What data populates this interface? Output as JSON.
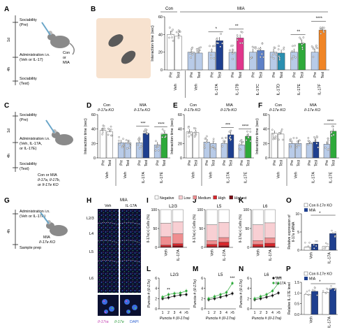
{
  "panel_letters": {
    "A": "A",
    "B": "B",
    "C": "C",
    "D": "D",
    "E": "E",
    "F": "F",
    "G": "G",
    "H": "H",
    "I": "I",
    "J": "J",
    "K": "K",
    "L": "L",
    "M": "M",
    "N": "N",
    "O": "O",
    "P": "P"
  },
  "common": {
    "pre": "Pre",
    "test": "Test",
    "veh": "Veh",
    "il17a": "IL-17A",
    "il17b": "IL-17B",
    "il17c": "IL-17C",
    "il17d": "IL-17D",
    "il17e": "IL-17E",
    "il17f": "IL-17F",
    "interaction_time": "Interaction time (sec)",
    "sig1": "*",
    "sig2": "**",
    "sig3": "***",
    "sig4": "****",
    "timeline_1d": "1d",
    "timeline_4h": "4h"
  },
  "panel_a": {
    "sociability_pre": "Sociability",
    "sociability_pre_sub": "(Pre)",
    "admin": "Administration i.n.",
    "admin_sub": "(Veh or IL-17)",
    "sociability_test": "Sociability",
    "sociability_test_sub": "(Test)",
    "mouse_label_1": "Con",
    "mouse_label_2": "or",
    "mouse_label_3": "MIA"
  },
  "panel_b": {
    "con": "Con",
    "mia": "MIA",
    "y_ticks": [
      "0",
      "20",
      "40",
      "60"
    ],
    "categories": [
      "Veh",
      "Veh",
      "IL-17A",
      "IL-17B",
      "IL-17C",
      "IL-17D",
      "IL-17E",
      "IL-17F"
    ]
  },
  "panel_c": {
    "sociability_pre": "Sociability",
    "sociability_pre_sub": "(Pre)",
    "admin": "Administration i.n.",
    "admin_sub1": "(Veh, IL-17A,",
    "admin_sub2": "or IL-17E)",
    "sociability_test": "Sociability",
    "sociability_test_sub": "(Test)",
    "mouse_label_1": "Con or MIA",
    "mouse_label_2": "Il-17a, Il-17b,",
    "mouse_label_3": "or Il-17e KO"
  },
  "panel_d": {
    "con": "Con",
    "mia": "MIA",
    "ko_con": "Il-17a KO",
    "ko_mia": "Il-17a KO",
    "y_ticks": [
      "0",
      "20",
      "40",
      "60"
    ]
  },
  "panel_e": {
    "con": "Con",
    "mia": "MIA",
    "ko_con": "Il-17b KO",
    "ko_mia": "Il-17b KO",
    "y_ticks": [
      "0",
      "20",
      "40",
      "60"
    ]
  },
  "panel_f": {
    "con": "Con",
    "mia": "MIA",
    "ko_con": "Il-17e KO",
    "ko_mia": "Il-17e KO",
    "y_ticks": [
      "0",
      "20",
      "40",
      "60"
    ]
  },
  "panel_g": {
    "admin": "Administration i.n.",
    "admin_sub": "(Veh or IL-17A)",
    "mouse_label_1": "MIA",
    "mouse_label_2": "Il-17e KO",
    "sample_prep": "Sample prep"
  },
  "panel_h": {
    "header": "MIA",
    "col_veh": "Veh",
    "col_il17a": "IL-17A",
    "layers": [
      "L2/3",
      "L4",
      "L5",
      "L6"
    ],
    "legend_1": "Il-17ra",
    "legend_2": "Il-17e",
    "legend_3": "DAPI"
  },
  "stack_panels": {
    "y_label": "Il-17e(+) Cells (%)",
    "y_ticks": [
      "0",
      "50",
      "100"
    ],
    "titles": [
      "L2/3",
      "L5",
      "L6"
    ],
    "categories": [
      "Veh",
      "IL-17A"
    ],
    "legend": [
      "Negative",
      "Low",
      "Medium",
      "High",
      "Highest"
    ],
    "legend_colors": [
      "#ffffff",
      "#f8cfd3",
      "#ef8e90",
      "#d8262b",
      "#7a0c14"
    ]
  },
  "line_panels": {
    "y_label": "Puncta # (Il-17e)",
    "x_label": "Puncta # (Il-17ra)",
    "x_ticks": [
      "1",
      "2",
      "3",
      "4",
      ">5"
    ],
    "y_ticks": [
      "0",
      "2",
      "4",
      "6"
    ],
    "titles": [
      "L2/3",
      "L5",
      "L6"
    ],
    "legend_veh": "Veh",
    "legend_il17a": "IL-17A"
  },
  "panel_o": {
    "legend_con": "Con Il-17e KO",
    "legend_mia": "MIA",
    "y_label_1": "Relative expression of",
    "y_label_2": "Il-17a mRNA",
    "y_ticks": [
      "0",
      "5",
      "10"
    ]
  },
  "panel_p": {
    "legend_con": "Con Il-17e KO",
    "legend_mia": "MIA",
    "y_label": "Relative IL-17E level",
    "y_ticks": [
      "0.0",
      "0.5",
      "1.0",
      "1.5"
    ]
  },
  "colors": {
    "con": "#ffffff",
    "veh": "#b8cbe8",
    "il17a": "#1e3f8f",
    "il17b": "#e0368c",
    "il17c": "#5d80c7",
    "il17d": "#2a8fb0",
    "il17e": "#2eaa3a",
    "il17f": "#f08526"
  },
  "chart_data": [
    {
      "panel": "B",
      "type": "bar",
      "ylabel": "Interaction time (sec)",
      "ylim": [
        0,
        60
      ],
      "groups": [
        "Con Veh",
        "MIA Veh",
        "MIA IL-17A",
        "MIA IL-17B",
        "MIA IL-17C",
        "MIA IL-17D",
        "MIA IL-17E",
        "MIA IL-17F"
      ],
      "series": [
        {
          "name": "Pre",
          "values": [
            40,
            20,
            20,
            20,
            20,
            20,
            20,
            20
          ]
        },
        {
          "name": "Test",
          "values": [
            38,
            19,
            33,
            36,
            22,
            19,
            30,
            45
          ]
        }
      ]
    },
    {
      "panel": "D",
      "type": "bar",
      "ylabel": "Interaction time (sec)",
      "ylim": [
        0,
        60
      ],
      "groups": [
        "Con Il-17a KO Veh",
        "MIA Il-17a KO Veh",
        "MIA Il-17a KO IL-17A",
        "MIA Il-17a KO IL-17E"
      ],
      "series": [
        {
          "name": "Pre",
          "values": [
            38,
            21,
            21,
            18
          ]
        },
        {
          "name": "Test",
          "values": [
            36,
            21,
            34,
            33
          ]
        }
      ]
    },
    {
      "panel": "E",
      "type": "bar",
      "ylabel": "Interaction time (sec)",
      "ylim": [
        0,
        60
      ],
      "groups": [
        "Con Il-17b KO Veh",
        "MIA Il-17b KO Veh",
        "MIA Il-17b KO IL-17A",
        "MIA Il-17b KO IL-17E"
      ],
      "series": [
        {
          "name": "Pre",
          "values": [
            36,
            22,
            20,
            18
          ]
        },
        {
          "name": "Test",
          "values": [
            35,
            20,
            32,
            30
          ]
        }
      ]
    },
    {
      "panel": "F",
      "type": "bar",
      "ylabel": "Interaction time (sec)",
      "ylim": [
        0,
        60
      ],
      "groups": [
        "Con Il-17e KO Veh",
        "MIA Il-17e KO Veh",
        "MIA Il-17e KO IL-17A",
        "MIA Il-17e KO IL-17E"
      ],
      "series": [
        {
          "name": "Pre",
          "values": [
            34,
            20,
            20,
            19
          ]
        },
        {
          "name": "Test",
          "values": [
            33,
            20,
            22,
            37
          ]
        }
      ]
    },
    {
      "panel": "I",
      "type": "bar",
      "title": "L2/3",
      "ylabel": "Il-17e(+) Cells (%)",
      "ylim": [
        0,
        100
      ],
      "categories": [
        "Veh",
        "IL-17A"
      ],
      "series": [
        {
          "name": "Highest",
          "values": [
            2,
            4
          ]
        },
        {
          "name": "High",
          "values": [
            4,
            6
          ]
        },
        {
          "name": "Medium",
          "values": [
            22,
            26
          ]
        },
        {
          "name": "Low",
          "values": [
            36,
            32
          ]
        },
        {
          "name": "Negative",
          "values": [
            36,
            32
          ]
        }
      ]
    },
    {
      "panel": "J",
      "type": "bar",
      "title": "L5",
      "ylabel": "Il-17e(+) Cells (%)",
      "ylim": [
        0,
        100
      ],
      "categories": [
        "Veh",
        "IL-17A"
      ],
      "series": [
        {
          "name": "Highest",
          "values": [
            2,
            4
          ]
        },
        {
          "name": "High",
          "values": [
            6,
            10
          ]
        },
        {
          "name": "Medium",
          "values": [
            10,
            12
          ]
        },
        {
          "name": "Low",
          "values": [
            42,
            40
          ]
        },
        {
          "name": "Negative",
          "values": [
            40,
            34
          ]
        }
      ]
    },
    {
      "panel": "K",
      "type": "bar",
      "title": "L6",
      "ylabel": "Il-17e(+) Cells (%)",
      "ylim": [
        0,
        100
      ],
      "categories": [
        "Veh",
        "IL-17A"
      ],
      "series": [
        {
          "name": "Highest",
          "values": [
            2,
            3
          ]
        },
        {
          "name": "High",
          "values": [
            6,
            8
          ]
        },
        {
          "name": "Medium",
          "values": [
            10,
            14
          ]
        },
        {
          "name": "Low",
          "values": [
            42,
            40
          ]
        },
        {
          "name": "Negative",
          "values": [
            40,
            35
          ]
        }
      ]
    },
    {
      "panel": "L",
      "type": "line",
      "title": "L2/3",
      "xlabel": "Puncta # (Il-17ra)",
      "ylabel": "Puncta # (Il-17e)",
      "ylim": [
        0,
        6
      ],
      "x": [
        "1",
        "2",
        "3",
        "4",
        ">5"
      ],
      "series": [
        {
          "name": "Veh",
          "values": [
            2.0,
            2.2,
            2.5,
            2.7,
            2.8
          ]
        },
        {
          "name": "IL-17A",
          "values": [
            2.3,
            2.8,
            3.0,
            3.1,
            3.5
          ]
        }
      ]
    },
    {
      "panel": "M",
      "type": "line",
      "title": "L5",
      "xlabel": "Puncta # (Il-17ra)",
      "ylabel": "Puncta # (Il-17e)",
      "ylim": [
        0,
        6
      ],
      "x": [
        "1",
        "2",
        "3",
        "4",
        ">5"
      ],
      "series": [
        {
          "name": "Veh",
          "values": [
            1.8,
            2.0,
            2.3,
            2.6,
            3.0
          ]
        },
        {
          "name": "IL-17A",
          "values": [
            2.0,
            2.4,
            2.8,
            3.2,
            5.0
          ]
        }
      ]
    },
    {
      "panel": "N",
      "type": "line",
      "title": "L6",
      "xlabel": "Puncta # (Il-17ra)",
      "ylabel": "Puncta # (Il-17e)",
      "ylim": [
        0,
        6
      ],
      "x": [
        "1",
        "2",
        "3",
        "4",
        ">5"
      ],
      "series": [
        {
          "name": "Veh",
          "values": [
            1.8,
            2.0,
            2.3,
            2.6,
            3.1
          ]
        },
        {
          "name": "IL-17A",
          "values": [
            2.0,
            2.4,
            2.8,
            3.5,
            5.0
          ]
        }
      ]
    },
    {
      "panel": "O",
      "type": "bar",
      "ylabel": "Relative expression of Il-17a mRNA",
      "ylim": [
        0,
        12
      ],
      "categories": [
        "Veh",
        "IL-17A"
      ],
      "series": [
        {
          "name": "Con Il-17e KO",
          "values": [
            1.0,
            1.2
          ]
        },
        {
          "name": "MIA",
          "values": [
            2.0,
            5.5
          ]
        }
      ]
    },
    {
      "panel": "P",
      "type": "bar",
      "ylabel": "Relative IL-17E level",
      "ylim": [
        0,
        1.6
      ],
      "categories": [
        "Veh",
        "IL-17A"
      ],
      "series": [
        {
          "name": "Con Il-17e KO",
          "values": [
            1.0,
            1.1
          ]
        },
        {
          "name": "MIA",
          "values": [
            1.15,
            1.3
          ]
        }
      ]
    }
  ]
}
